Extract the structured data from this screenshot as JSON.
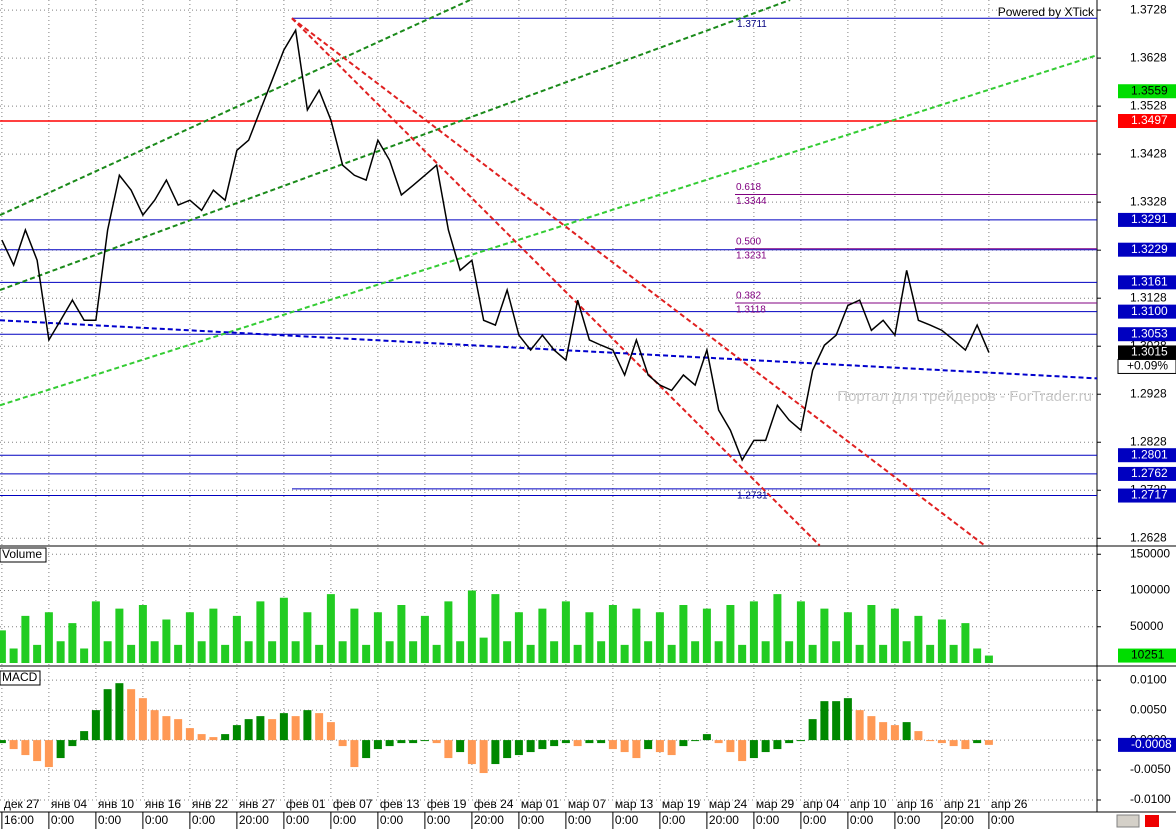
{
  "chart_data": [
    {
      "type": "line",
      "credit": "Powered by XTick",
      "watermark": "Портал для трейдеров - ForTrader.ru",
      "color": "#000000",
      "grid": true,
      "x": [
        0,
        0.25,
        0.5,
        0.75,
        1,
        1.25,
        1.5,
        1.75,
        2,
        2.25,
        2.5,
        2.75,
        3,
        3.25,
        3.5,
        3.75,
        4,
        4.25,
        4.5,
        4.75,
        5,
        5.25,
        5.5,
        5.75,
        6,
        6.25,
        6.5,
        6.75,
        7,
        7.25,
        7.5,
        7.75,
        8,
        8.25,
        8.5,
        8.75,
        9,
        9.25,
        9.5,
        9.75,
        10,
        10.25,
        10.5,
        10.75,
        11,
        11.25,
        11.5,
        11.75,
        12,
        12.25,
        12.5,
        12.75,
        13,
        13.25,
        13.5,
        13.75,
        14,
        14.25,
        14.5,
        14.75,
        15,
        15.25,
        15.5,
        15.75,
        16,
        16.25,
        16.5,
        16.75,
        17,
        17.25,
        17.5,
        17.75,
        18,
        18.25,
        18.5,
        18.75,
        19,
        19.25,
        19.5,
        19.75,
        20,
        20.25,
        20.5,
        20.75,
        21
      ],
      "values": [
        1.3249,
        1.3197,
        1.327,
        1.3207,
        1.3041,
        1.3082,
        1.3124,
        1.3082,
        1.3082,
        1.327,
        1.3384,
        1.3353,
        1.3301,
        1.3332,
        1.3374,
        1.3322,
        1.3332,
        1.3311,
        1.3353,
        1.3332,
        1.3436,
        1.3457,
        1.352,
        1.3582,
        1.3645,
        1.3686,
        1.352,
        1.3561,
        1.3499,
        1.3405,
        1.3384,
        1.3374,
        1.3457,
        1.3415,
        1.3343,
        1.3363,
        1.3384,
        1.3405,
        1.327,
        1.3186,
        1.3207,
        1.3082,
        1.3072,
        1.3145,
        1.3051,
        1.302,
        1.3051,
        1.302,
        1.2999,
        1.3124,
        1.3041,
        1.303,
        1.302,
        1.2968,
        1.3041,
        1.2968,
        1.2947,
        1.2936,
        1.2968,
        1.2947,
        1.302,
        1.2895,
        1.2853,
        1.2791,
        1.2832,
        1.2832,
        1.2905,
        1.2874,
        1.2853,
        1.2978,
        1.303,
        1.3051,
        1.3113,
        1.3124,
        1.3061,
        1.3082,
        1.3051,
        1.3186,
        1.3082,
        1.3072,
        1.3061,
        1.3041,
        1.302,
        1.3072,
        1.3015
      ],
      "xlim": [
        -0.04,
        23.3
      ],
      "ylim": [
        1.2614,
        1.3749
      ],
      "yticks": [
        1.3728,
        1.3628,
        1.3528,
        1.3428,
        1.3328,
        1.3228,
        1.3128,
        1.3028,
        1.2928,
        1.2828,
        1.2728,
        1.2628
      ],
      "xticks": [
        {
          "value": 0,
          "label": "дек 27"
        },
        {
          "value": 1,
          "label": "янв 04"
        },
        {
          "value": 2,
          "label": "янв 10"
        },
        {
          "value": 3,
          "label": "янв 16"
        },
        {
          "value": 4,
          "label": "янв 22"
        },
        {
          "value": 5,
          "label": "янв 27"
        },
        {
          "value": 6,
          "label": "фев 01"
        },
        {
          "value": 7,
          "label": "фев 07"
        },
        {
          "value": 8,
          "label": "фев 13"
        },
        {
          "value": 9,
          "label": "фев 19"
        },
        {
          "value": 10,
          "label": "фев 24"
        },
        {
          "value": 11,
          "label": "мар 01"
        },
        {
          "value": 12,
          "label": "мар 07"
        },
        {
          "value": 13,
          "label": "мар 13"
        },
        {
          "value": 14,
          "label": "мар 19"
        },
        {
          "value": 15,
          "label": "мар 24"
        },
        {
          "value": 16,
          "label": "мар 29"
        },
        {
          "value": 17,
          "label": "апр 04"
        },
        {
          "value": 18,
          "label": "апр 10"
        },
        {
          "value": 19,
          "label": "апр 16"
        },
        {
          "value": 20,
          "label": "апр 21"
        },
        {
          "value": 21,
          "label": "апр 26"
        }
      ],
      "xtick_times": [
        "16:00",
        "0:00",
        "0:00",
        "0:00",
        "0:00",
        "20:00",
        "0:00",
        "0:00",
        "0:00",
        "0:00",
        "20:00",
        "0:00",
        "0:00",
        "0:00",
        "0:00",
        "20:00",
        "0:00",
        "0:00",
        "0:00",
        "0:00",
        "20:00",
        "0:00"
      ],
      "levels": [
        {
          "value": 1.3497,
          "color": "#ff0000"
        },
        {
          "value": 1.3291,
          "color": "#0000c0"
        },
        {
          "value": 1.3229,
          "color": "#0000c0"
        },
        {
          "value": 1.3161,
          "color": "#0000c0"
        },
        {
          "value": 1.31,
          "label": "1.3100",
          "color": "#0000c0"
        },
        {
          "value": 1.3053,
          "color": "#0000c0"
        },
        {
          "value": 1.2801,
          "color": "#0000c0"
        },
        {
          "value": 1.2762,
          "color": "#0000c0"
        },
        {
          "value": 1.2717,
          "color": "#0000c0"
        }
      ],
      "price_tags": [
        {
          "value": 1.3559,
          "color": "#00dd00"
        },
        {
          "value": 1.3015,
          "color": "#000000"
        }
      ],
      "change": "+0.09%",
      "fib": [
        {
          "level": "0.618",
          "price": 1.3344
        },
        {
          "level": "0.500",
          "price": 1.3231
        },
        {
          "level": "0.382",
          "price": 1.3118
        }
      ],
      "fib_ends": [
        1.3711,
        1.2731
      ],
      "trendlines": [
        {
          "x": [
            -0.04,
            9.96
          ],
          "y": [
            1.3301,
            1.3749
          ],
          "color": "#1a8a1a"
        },
        {
          "x": [
            -0.04,
            16.77
          ],
          "y": [
            1.3145,
            1.3749
          ],
          "color": "#1a8a1a"
        },
        {
          "x": [
            -0.04,
            23.3
          ],
          "y": [
            1.2905,
            1.3634
          ],
          "color": "#33cc33"
        },
        {
          "x": [
            6.17,
            17.4
          ],
          "y": [
            1.3711,
            1.2613
          ],
          "color": "#e02020"
        },
        {
          "x": [
            6.17,
            20.91
          ],
          "y": [
            1.3711,
            1.2613
          ],
          "color": "#e02020"
        },
        {
          "x": [
            -0.04,
            23.3
          ],
          "y": [
            1.3082,
            1.2961
          ],
          "color": "#0000cc"
        }
      ]
    },
    {
      "type": "bar",
      "title": "Volume",
      "color": "#22cc22",
      "ylim": [
        0,
        160000
      ],
      "yticks": [
        50000,
        100000,
        150000
      ],
      "values": [
        45000,
        20000,
        65000,
        25000,
        70000,
        30000,
        55000,
        20000,
        85000,
        30000,
        75000,
        25000,
        80000,
        30000,
        60000,
        25000,
        70000,
        30000,
        75000,
        25000,
        65000,
        30000,
        85000,
        30000,
        90000,
        30000,
        70000,
        25000,
        95000,
        30000,
        75000,
        25000,
        70000,
        30000,
        80000,
        30000,
        65000,
        25000,
        85000,
        30000,
        100000,
        35000,
        95000,
        30000,
        70000,
        25000,
        75000,
        30000,
        85000,
        25000,
        70000,
        30000,
        80000,
        25000,
        75000,
        30000,
        70000,
        25000,
        80000,
        30000,
        75000,
        30000,
        80000,
        25000,
        85000,
        30000,
        95000,
        30000,
        85000,
        25000,
        75000,
        30000,
        70000,
        25000,
        80000,
        25000,
        75000,
        30000,
        65000,
        25000,
        60000,
        25000,
        55000,
        20000,
        10251
      ]
    },
    {
      "type": "macd",
      "title": "MACD",
      "up_color": "#008800",
      "down_color": "#ff9955",
      "ylim": [
        -0.01,
        0.0117
      ],
      "yticks": [
        {
          "value": 0.01,
          "label": "0.0100"
        },
        {
          "value": 0.005,
          "label": "0.0050"
        },
        {
          "value": 0,
          "label": "0.0000"
        },
        {
          "value": -0.005,
          "label": "-0.0050"
        },
        {
          "value": -0.01,
          "label": "-0.0100"
        }
      ],
      "values": [
        -0.0005,
        -0.0015,
        -0.0025,
        -0.0035,
        -0.0045,
        -0.003,
        -0.001,
        0.0015,
        0.005,
        0.0085,
        0.0095,
        0.0085,
        0.007,
        0.005,
        0.004,
        0.0035,
        0.002,
        0.001,
        0.0005,
        0.001,
        0.0025,
        0.0035,
        0.004,
        0.0035,
        0.0045,
        0.004,
        0.005,
        0.0045,
        0.003,
        -0.001,
        -0.0045,
        -0.003,
        -0.0015,
        -0.001,
        -0.0005,
        -0.0005,
        0,
        -0.0005,
        -0.003,
        -0.002,
        -0.004,
        -0.0055,
        -0.004,
        -0.003,
        -0.0025,
        -0.002,
        -0.0015,
        -0.001,
        -0.0005,
        -0.001,
        -0.0005,
        -0.0005,
        -0.0015,
        -0.002,
        -0.003,
        -0.0015,
        -0.002,
        -0.0025,
        -0.001,
        0,
        0.001,
        -0.0005,
        -0.002,
        -0.0035,
        -0.003,
        -0.002,
        -0.0015,
        -0.0005,
        0,
        0.0035,
        0.0065,
        0.0065,
        0.007,
        0.005,
        0.004,
        0.003,
        0.0025,
        0.003,
        0.0015,
        0,
        -0.0005,
        -0.001,
        -0.0015,
        -0.0005,
        -0.0008
      ]
    }
  ]
}
